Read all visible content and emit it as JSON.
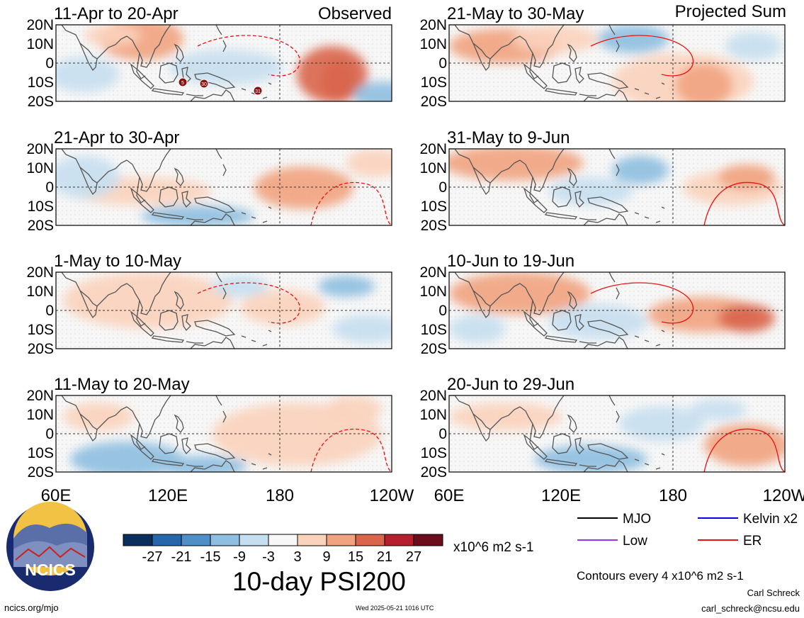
{
  "header": {
    "left_label": "Observed",
    "right_label": "Projected Sum"
  },
  "panels": [
    {
      "label": "11-Apr to 20-Apr"
    },
    {
      "label": "21-Apr to 30-Apr"
    },
    {
      "label": "1-May to 10-May"
    },
    {
      "label": "11-May to 20-May"
    },
    {
      "label": "21-May to 30-May"
    },
    {
      "label": "31-May to 9-Jun"
    },
    {
      "label": "10-Jun to 19-Jun"
    },
    {
      "label": "20-Jun to 29-Jun"
    }
  ],
  "lat_labels": [
    "20N",
    "10N",
    "0",
    "10S",
    "20S"
  ],
  "lon_labels": [
    "60E",
    "120E",
    "180",
    "120W"
  ],
  "colorbar": {
    "ticks": [
      "-27",
      "-21",
      "-15",
      "-9",
      "-3",
      "3",
      "9",
      "15",
      "21",
      "27"
    ],
    "colors": [
      "#0b2f5c",
      "#2667ac",
      "#4f8fc8",
      "#8ebfe0",
      "#c6dff0",
      "#f7f7f7",
      "#fbd3bc",
      "#f1a37f",
      "#d9654b",
      "#b51f2e",
      "#6b0d1b"
    ],
    "units": "x10^6 m2 s-1"
  },
  "title": "10-day PSI200",
  "legend": [
    {
      "label": "MJO",
      "color": "#000000"
    },
    {
      "label": "Kelvin x2",
      "color": "#0000ee"
    },
    {
      "label": "Low",
      "color": "#9933ee"
    },
    {
      "label": "ER",
      "color": "#ee1111"
    }
  ],
  "contour_note": "Contours every 4 x10^6 m2 s-1",
  "logo_text": "NCICS",
  "footer": {
    "site": "ncics.org/mjo",
    "date": "Wed 2025-05-21 1016 UTC",
    "author": "Carl Schreck",
    "email": "carl_schreck@ncsu.edu"
  },
  "storm_markers": [
    "5",
    "30",
    "31"
  ]
}
